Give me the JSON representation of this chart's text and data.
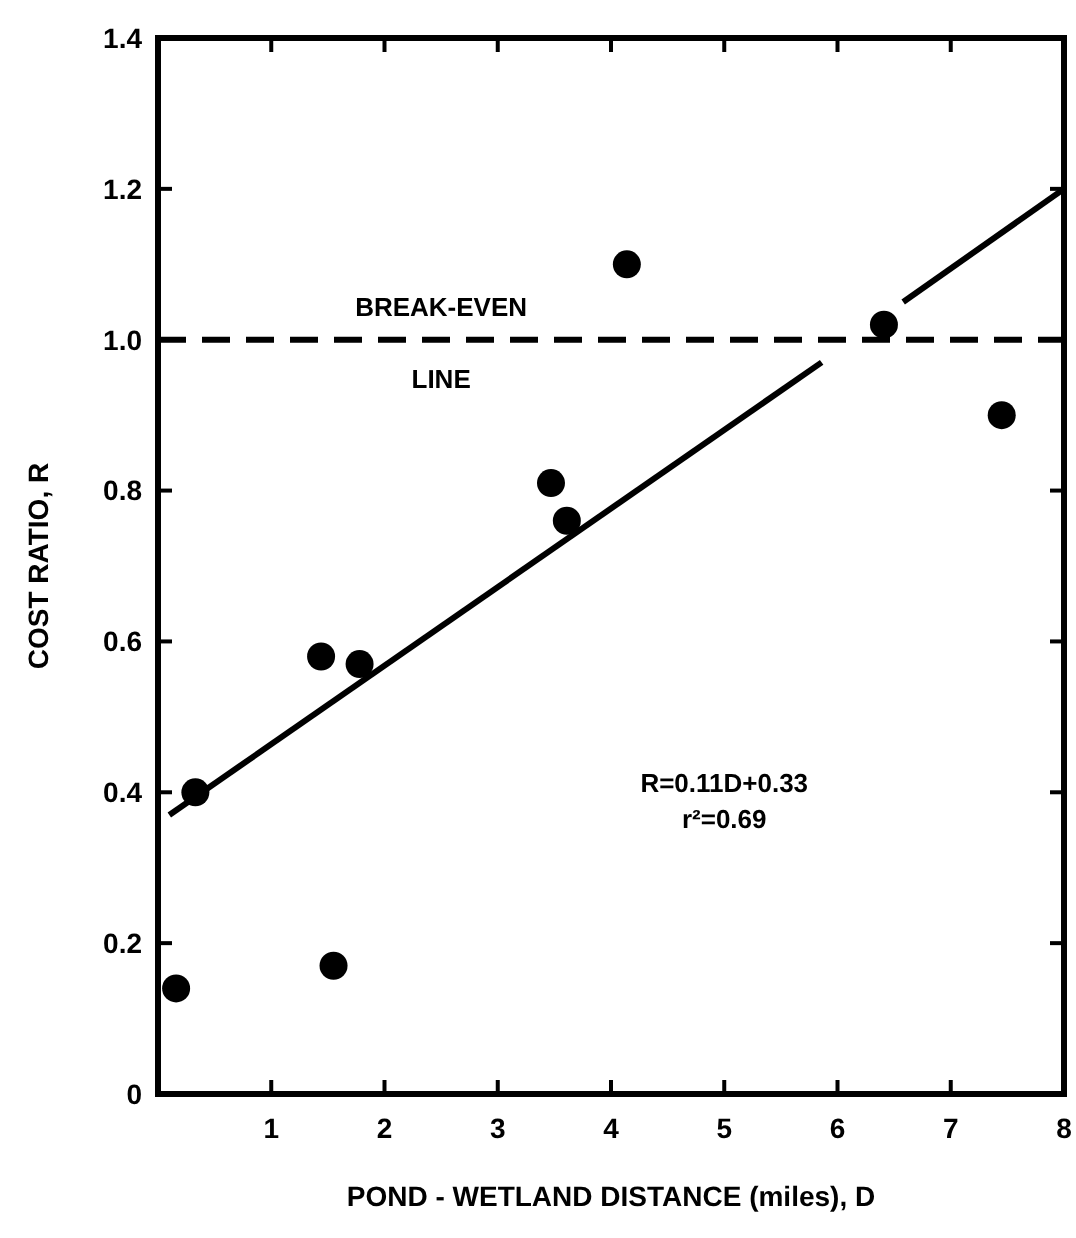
{
  "chart_data": {
    "type": "scatter",
    "xlabel": "POND - WETLAND DISTANCE (miles), D",
    "ylabel": "COST RATIO, R",
    "xlim": [
      0,
      8
    ],
    "xticks": [
      1,
      2,
      3,
      4,
      5,
      6,
      7,
      8
    ],
    "ylim": [
      0,
      1.4
    ],
    "yticks": [
      0,
      0.2,
      0.4,
      0.6,
      0.8,
      {
        "value": 1,
        "label": "1.0"
      },
      1.2,
      1.4
    ],
    "series": [
      {
        "color": "#000000",
        "marker": "circle",
        "x": [
          0.16,
          0.33,
          1.44,
          1.78,
          1.55,
          3.47,
          3.61,
          4.14,
          6.41,
          7.45
        ],
        "values": [
          0.14,
          0.4,
          0.58,
          0.57,
          0.17,
          0.81,
          0.76,
          1.1,
          1.02,
          0.9
        ]
      },
      {
        "type": "line",
        "color": "#000000",
        "marker": "none",
        "line_style": "solid",
        "x": [
          0.1,
          5.86
        ],
        "values": [
          0.37,
          0.97
        ]
      },
      {
        "type": "line",
        "color": "#000000",
        "marker": "none",
        "line_style": "solid",
        "x": [
          6.58,
          8
        ],
        "values": [
          1.05,
          1.2
        ]
      }
    ],
    "ref_lines": [
      {
        "axis": "y",
        "value": 1,
        "label": "BREAK-EVEN LINE",
        "line_style": "dashed",
        "color": "#000000"
      }
    ],
    "annotations": [
      "R=0.11D+0.33",
      "r²=0.69"
    ],
    "grid": false
  }
}
